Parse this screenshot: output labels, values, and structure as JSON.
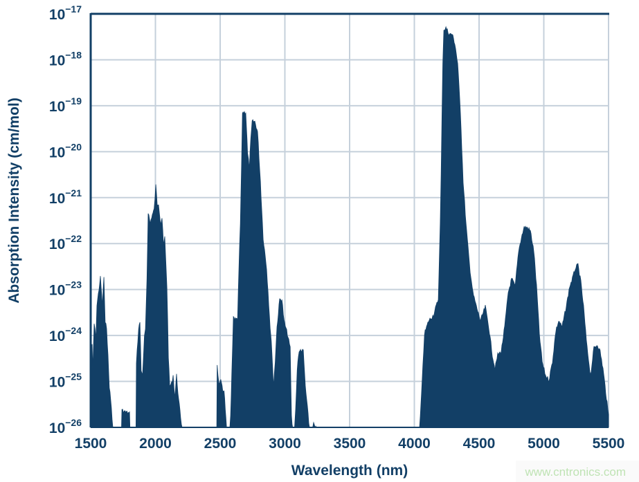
{
  "chart_data": {
    "type": "area",
    "xlabel": "Wavelength (nm)",
    "ylabel": "Absorption Intensity (cm/mol)",
    "xlim": [
      1500,
      5500
    ],
    "ylim": [
      1e-26,
      1e-17
    ],
    "yscale": "log",
    "grid": true,
    "xticks": [
      "1500",
      "2000",
      "2500",
      "3000",
      "3500",
      "4000",
      "4500",
      "5000",
      "5500"
    ],
    "yticks": [
      {
        "base": "10",
        "exp": "−17"
      },
      {
        "base": "10",
        "exp": "−18"
      },
      {
        "base": "10",
        "exp": "−19"
      },
      {
        "base": "10",
        "exp": "−20"
      },
      {
        "base": "10",
        "exp": "−21"
      },
      {
        "base": "10",
        "exp": "−22"
      },
      {
        "base": "10",
        "exp": "−23"
      },
      {
        "base": "10",
        "exp": "−24"
      },
      {
        "base": "10",
        "exp": "−25"
      },
      {
        "base": "10",
        "exp": "−26"
      }
    ],
    "colors": {
      "series": "#123f66",
      "grid": "#c5d0db",
      "text": "#123f66"
    },
    "series": [
      {
        "points": [
          [
            1500,
            1e-26
          ],
          [
            1502,
            6.6e-25
          ],
          [
            1511,
            6.6e-25
          ],
          [
            1516,
            2e-25
          ],
          [
            1527,
            2e-24
          ],
          [
            1540,
            1e-24
          ],
          [
            1548,
            5e-24
          ],
          [
            1575,
            2e-23
          ],
          [
            1590,
            5e-24
          ],
          [
            1602,
            2.1e-23
          ],
          [
            1612,
            2e-24
          ],
          [
            1623,
            1.7e-24
          ],
          [
            1644,
            8.8e-26
          ],
          [
            1660,
            3e-26
          ],
          [
            1671,
            1e-26
          ],
          [
            1738,
            1e-26
          ],
          [
            1741,
            2.6e-26
          ],
          [
            1770,
            2.4e-26
          ],
          [
            1800,
            2.2e-26
          ],
          [
            1803,
            1e-26
          ],
          [
            1850,
            1e-26
          ],
          [
            1853,
            3e-25
          ],
          [
            1870,
            1.5e-24
          ],
          [
            1880,
            2.2e-24
          ],
          [
            1890,
            2e-25
          ],
          [
            1901,
            1.5e-25
          ],
          [
            1915,
            1e-24
          ],
          [
            1923,
            1.4e-24
          ],
          [
            1935,
            2e-23
          ],
          [
            1944,
            5.5e-22
          ],
          [
            1960,
            3e-22
          ],
          [
            1971,
            4.3e-22
          ],
          [
            1990,
            6e-22
          ],
          [
            2003,
            2e-21
          ],
          [
            2014,
            8e-22
          ],
          [
            2024,
            8.5e-22
          ],
          [
            2040,
            3e-22
          ],
          [
            2051,
            4e-22
          ],
          [
            2062,
            1e-22
          ],
          [
            2072,
            1.5e-22
          ],
          [
            2089,
            1.3e-23
          ],
          [
            2100,
            4e-25
          ],
          [
            2110,
            8.8e-26
          ],
          [
            2125,
            1e-25
          ],
          [
            2137,
            1.5e-25
          ],
          [
            2150,
            5e-26
          ],
          [
            2163,
            1.5e-25
          ],
          [
            2179,
            4.4e-26
          ],
          [
            2206,
            1e-26
          ],
          [
            2474,
            1e-26
          ],
          [
            2477,
            2.6e-25
          ],
          [
            2490,
            1e-25
          ],
          [
            2505,
            1.1e-25
          ],
          [
            2520,
            7e-26
          ],
          [
            2530,
            7.4e-26
          ],
          [
            2549,
            1e-26
          ],
          [
            2575,
            1e-26
          ],
          [
            2581,
            1.9e-26
          ],
          [
            2590,
            1.5e-25
          ],
          [
            2602,
            2.7e-24
          ],
          [
            2634,
            2.3e-24
          ],
          [
            2645,
            3e-23
          ],
          [
            2656,
            3e-22
          ],
          [
            2665,
            5e-21
          ],
          [
            2672,
            8e-20
          ],
          [
            2698,
            8e-20
          ],
          [
            2712,
            1e-20
          ],
          [
            2725,
            5e-21
          ],
          [
            2737,
            2e-20
          ],
          [
            2747,
            5e-20
          ],
          [
            2768,
            5e-20
          ],
          [
            2789,
            3e-20
          ],
          [
            2811,
            2.5e-21
          ],
          [
            2832,
            1.5e-22
          ],
          [
            2859,
            3.2e-23
          ],
          [
            2886,
            1.7e-24
          ],
          [
            2900,
            5e-25
          ],
          [
            2912,
            8.8e-26
          ],
          [
            2925,
            3e-25
          ],
          [
            2939,
            1.7e-24
          ],
          [
            2960,
            6.8e-24
          ],
          [
            2977,
            6.8e-24
          ],
          [
            2993,
            2.3e-24
          ],
          [
            3019,
            1.2e-24
          ],
          [
            3041,
            5.9e-25
          ],
          [
            3051,
            1.9e-26
          ],
          [
            3060,
            1e-26
          ],
          [
            3075,
            1e-26
          ],
          [
            3083,
            2.6e-26
          ],
          [
            3095,
            2e-25
          ],
          [
            3105,
            4.2e-25
          ],
          [
            3121,
            5.4e-25
          ],
          [
            3142,
            5e-25
          ],
          [
            3158,
            8.8e-26
          ],
          [
            3190,
            1e-26
          ],
          [
            3215,
            1e-26
          ],
          [
            3222,
            1.4e-26
          ],
          [
            3244,
            1e-26
          ],
          [
            4040,
            1e-26
          ],
          [
            4046,
            1.9e-26
          ],
          [
            4060,
            1e-25
          ],
          [
            4078,
            1.2e-24
          ],
          [
            4110,
            2.3e-24
          ],
          [
            4148,
            3.1e-24
          ],
          [
            4185,
            6.8e-24
          ],
          [
            4200,
            3e-22
          ],
          [
            4207,
            3.5e-21
          ],
          [
            4220,
            1e-18
          ],
          [
            4228,
            5e-18
          ],
          [
            4244,
            5.5e-18
          ],
          [
            4270,
            4e-18
          ],
          [
            4292,
            4e-18
          ],
          [
            4313,
            2.5e-18
          ],
          [
            4335,
            9e-19
          ],
          [
            4356,
            8e-20
          ],
          [
            4377,
            2.5e-21
          ],
          [
            4399,
            3e-22
          ],
          [
            4426,
            3.8e-23
          ],
          [
            4452,
            9.5e-24
          ],
          [
            4479,
            4.7e-24
          ],
          [
            4511,
            2.3e-24
          ],
          [
            4548,
            4.7e-24
          ],
          [
            4575,
            1.7e-24
          ],
          [
            4602,
            4.2e-25
          ],
          [
            4623,
            2.1e-25
          ],
          [
            4644,
            4.2e-25
          ],
          [
            4671,
            5e-25
          ],
          [
            4698,
            1.7e-24
          ],
          [
            4725,
            9.5e-24
          ],
          [
            4752,
            1.9e-23
          ],
          [
            4779,
            1.3e-23
          ],
          [
            4805,
            7.6e-23
          ],
          [
            4827,
            1.5e-22
          ],
          [
            4848,
            2.5e-22
          ],
          [
            4870,
            2.5e-22
          ],
          [
            4896,
            2.1e-22
          ],
          [
            4923,
            7.6e-23
          ],
          [
            4944,
            1.3e-23
          ],
          [
            4966,
            1.2e-24
          ],
          [
            4987,
            3e-25
          ],
          [
            5013,
            1.5e-25
          ],
          [
            5040,
            1.2e-25
          ],
          [
            5067,
            3e-25
          ],
          [
            5093,
            1.4e-24
          ],
          [
            5115,
            2.3e-24
          ],
          [
            5141,
            1.7e-24
          ],
          [
            5173,
            4.7e-24
          ],
          [
            5200,
            1.3e-23
          ],
          [
            5221,
            1.9e-23
          ],
          [
            5243,
            3.2e-23
          ],
          [
            5264,
            3.8e-23
          ],
          [
            5286,
            1.6e-23
          ],
          [
            5307,
            4.7e-24
          ],
          [
            5334,
            5.9e-25
          ],
          [
            5361,
            1.5e-25
          ],
          [
            5387,
            5.9e-25
          ],
          [
            5414,
            7e-25
          ],
          [
            5435,
            5e-25
          ],
          [
            5457,
            2.1e-25
          ],
          [
            5473,
            8.8e-26
          ],
          [
            5489,
            3.7e-26
          ],
          [
            5500,
            1.9e-26
          ]
        ]
      }
    ]
  },
  "watermark": "www.cntronics.com"
}
